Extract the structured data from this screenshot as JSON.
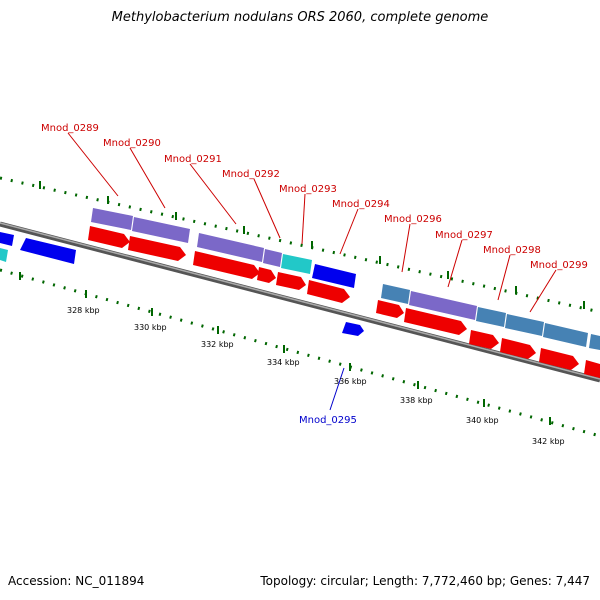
{
  "title": "Methylobacterium nodulans ORS 2060, complete genome",
  "accession": "Accession: NC_011894",
  "topology": "Topology: circular; Length: 7,772,460 bp; Genes: 7,447",
  "ticks": [
    "328 kbp",
    "330 kbp",
    "332 kbp",
    "334 kbp",
    "336 kbp",
    "338 kbp",
    "340 kbp",
    "342 kbp"
  ],
  "labels": [
    {
      "name": "Mnod_0289",
      "color": "#cc0000"
    },
    {
      "name": "Mnod_0290",
      "color": "#cc0000"
    },
    {
      "name": "Mnod_0291",
      "color": "#cc0000"
    },
    {
      "name": "Mnod_0292",
      "color": "#cc0000"
    },
    {
      "name": "Mnod_0293",
      "color": "#cc0000"
    },
    {
      "name": "Mnod_0294",
      "color": "#cc0000"
    },
    {
      "name": "Mnod_0296",
      "color": "#cc0000"
    },
    {
      "name": "Mnod_0297",
      "color": "#cc0000"
    },
    {
      "name": "Mnod_0298",
      "color": "#cc0000"
    },
    {
      "name": "Mnod_0299",
      "color": "#cc0000"
    },
    {
      "name": "Mnod_0295",
      "color": "#0000cc"
    }
  ],
  "colors": {
    "cds_forward": "#ee0000",
    "cds_reverse": "#0000ee",
    "cog_purple": "#7b68c8",
    "cog_cyan": "#22c8c8",
    "cog_steelblue": "#4682b4",
    "backbone": "#808080",
    "tick_major": "#006600"
  }
}
